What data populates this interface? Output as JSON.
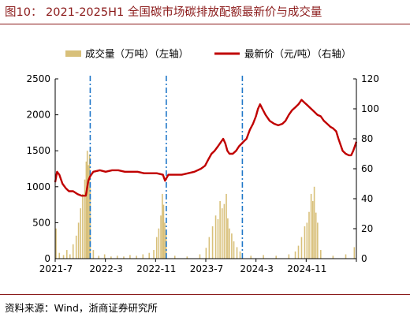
{
  "figure_title": "图10：  2021-2025H1 全国碳市场碳排放配额最新价与成交量",
  "source": "资料来源：Wind，浙商证券研究所",
  "colors": {
    "bar": "#d8c07a",
    "line": "#c00000",
    "vline": "#1f77c8",
    "title": "#8b1a1a"
  },
  "chart_data": {
    "type": "bar+line",
    "title": "",
    "legend_position": "top",
    "grid": false,
    "x_tick_labels": [
      "2021-7",
      "2022-3",
      "2022-11",
      "2023-7",
      "2024-3",
      "2024-11"
    ],
    "x_range": [
      "2021-07-16",
      "2025-06-30"
    ],
    "y_left": {
      "label": "",
      "range": [
        0,
        2500
      ],
      "ticks": [
        0,
        500,
        1000,
        1500,
        2000,
        2500
      ]
    },
    "y_right": {
      "label": "",
      "range": [
        0,
        120
      ],
      "ticks": [
        0,
        20,
        40,
        60,
        80,
        100,
        120
      ]
    },
    "vertical_markers": [
      "2021-12-31",
      "2022-12-31",
      "2023-12-31"
    ],
    "series": [
      {
        "name": "成交量（万吨）（左轴）",
        "type": "bar",
        "axis": "left",
        "points": [
          [
            "2021-07-20",
            420
          ],
          [
            "2021-08-05",
            80
          ],
          [
            "2021-08-25",
            50
          ],
          [
            "2021-09-10",
            120
          ],
          [
            "2021-09-25",
            60
          ],
          [
            "2021-10-10",
            200
          ],
          [
            "2021-10-25",
            320
          ],
          [
            "2021-11-05",
            500
          ],
          [
            "2021-11-15",
            700
          ],
          [
            "2021-11-25",
            900
          ],
          [
            "2021-12-05",
            1100
          ],
          [
            "2021-12-12",
            1350
          ],
          [
            "2021-12-17",
            1500
          ],
          [
            "2021-12-22",
            1300
          ],
          [
            "2021-12-28",
            1450
          ],
          [
            "2021-12-31",
            980
          ],
          [
            "2022-01-15",
            120
          ],
          [
            "2022-02-10",
            40
          ],
          [
            "2022-03-10",
            60
          ],
          [
            "2022-04-10",
            30
          ],
          [
            "2022-05-10",
            40
          ],
          [
            "2022-06-10",
            30
          ],
          [
            "2022-07-10",
            50
          ],
          [
            "2022-08-10",
            40
          ],
          [
            "2022-09-10",
            60
          ],
          [
            "2022-10-10",
            80
          ],
          [
            "2022-11-01",
            120
          ],
          [
            "2022-11-15",
            300
          ],
          [
            "2022-11-25",
            420
          ],
          [
            "2022-12-05",
            600
          ],
          [
            "2022-12-12",
            900
          ],
          [
            "2022-12-18",
            750
          ],
          [
            "2022-12-24",
            500
          ],
          [
            "2022-12-30",
            350
          ],
          [
            "2023-02-10",
            40
          ],
          [
            "2023-04-10",
            30
          ],
          [
            "2023-06-10",
            60
          ],
          [
            "2023-07-10",
            150
          ],
          [
            "2023-07-25",
            300
          ],
          [
            "2023-08-10",
            450
          ],
          [
            "2023-08-25",
            600
          ],
          [
            "2023-09-05",
            550
          ],
          [
            "2023-09-15",
            800
          ],
          [
            "2023-09-25",
            700
          ],
          [
            "2023-10-05",
            760
          ],
          [
            "2023-10-15",
            900
          ],
          [
            "2023-10-22",
            560
          ],
          [
            "2023-10-30",
            420
          ],
          [
            "2023-11-10",
            350
          ],
          [
            "2023-11-20",
            240
          ],
          [
            "2023-12-05",
            160
          ],
          [
            "2023-12-20",
            100
          ],
          [
            "2024-02-10",
            40
          ],
          [
            "2024-04-10",
            50
          ],
          [
            "2024-06-10",
            40
          ],
          [
            "2024-08-10",
            60
          ],
          [
            "2024-09-10",
            100
          ],
          [
            "2024-09-25",
            180
          ],
          [
            "2024-10-10",
            300
          ],
          [
            "2024-10-25",
            450
          ],
          [
            "2024-11-05",
            500
          ],
          [
            "2024-11-15",
            650
          ],
          [
            "2024-11-25",
            900
          ],
          [
            "2024-12-03",
            800
          ],
          [
            "2024-12-10",
            1000
          ],
          [
            "2024-12-18",
            640
          ],
          [
            "2024-12-26",
            500
          ],
          [
            "2025-01-10",
            120
          ],
          [
            "2025-03-10",
            40
          ],
          [
            "2025-05-10",
            60
          ],
          [
            "2025-06-20",
            160
          ]
        ]
      },
      {
        "name": "最新价（元/吨）（右轴）",
        "type": "line",
        "axis": "right",
        "points": [
          [
            "2021-07-16",
            51
          ],
          [
            "2021-07-25",
            58
          ],
          [
            "2021-08-05",
            56
          ],
          [
            "2021-08-20",
            50
          ],
          [
            "2021-09-05",
            47
          ],
          [
            "2021-09-20",
            45
          ],
          [
            "2021-10-10",
            45
          ],
          [
            "2021-11-01",
            43
          ],
          [
            "2021-11-20",
            42
          ],
          [
            "2021-12-10",
            42
          ],
          [
            "2021-12-22",
            52
          ],
          [
            "2021-12-31",
            55
          ],
          [
            "2022-01-15",
            58
          ],
          [
            "2022-02-15",
            59
          ],
          [
            "2022-03-15",
            58
          ],
          [
            "2022-04-15",
            59
          ],
          [
            "2022-05-15",
            59
          ],
          [
            "2022-06-15",
            58
          ],
          [
            "2022-07-15",
            58
          ],
          [
            "2022-08-15",
            58
          ],
          [
            "2022-09-15",
            57
          ],
          [
            "2022-10-15",
            57
          ],
          [
            "2022-11-15",
            57
          ],
          [
            "2022-12-15",
            56
          ],
          [
            "2022-12-25",
            52
          ],
          [
            "2023-01-10",
            56
          ],
          [
            "2023-02-15",
            56
          ],
          [
            "2023-03-15",
            56
          ],
          [
            "2023-04-15",
            57
          ],
          [
            "2023-05-15",
            58
          ],
          [
            "2023-06-15",
            60
          ],
          [
            "2023-07-05",
            62
          ],
          [
            "2023-07-20",
            66
          ],
          [
            "2023-08-05",
            70
          ],
          [
            "2023-08-20",
            72
          ],
          [
            "2023-09-05",
            75
          ],
          [
            "2023-09-20",
            78
          ],
          [
            "2023-09-30",
            80
          ],
          [
            "2023-10-10",
            77
          ],
          [
            "2023-10-20",
            72
          ],
          [
            "2023-10-30",
            70
          ],
          [
            "2023-11-15",
            70
          ],
          [
            "2023-12-01",
            72
          ],
          [
            "2023-12-15",
            75
          ],
          [
            "2024-01-05",
            78
          ],
          [
            "2024-01-20",
            80
          ],
          [
            "2024-02-05",
            86
          ],
          [
            "2024-02-20",
            90
          ],
          [
            "2024-03-05",
            95
          ],
          [
            "2024-03-15",
            100
          ],
          [
            "2024-03-25",
            103
          ],
          [
            "2024-04-05",
            100
          ],
          [
            "2024-04-20",
            96
          ],
          [
            "2024-05-10",
            92
          ],
          [
            "2024-06-01",
            90
          ],
          [
            "2024-06-20",
            89
          ],
          [
            "2024-07-10",
            90
          ],
          [
            "2024-07-25",
            92
          ],
          [
            "2024-08-10",
            96
          ],
          [
            "2024-08-25",
            99
          ],
          [
            "2024-09-10",
            101
          ],
          [
            "2024-09-25",
            103
          ],
          [
            "2024-10-10",
            106
          ],
          [
            "2024-10-25",
            104
          ],
          [
            "2024-11-10",
            102
          ],
          [
            "2024-11-25",
            100
          ],
          [
            "2024-12-10",
            98
          ],
          [
            "2024-12-25",
            96
          ],
          [
            "2025-01-10",
            95
          ],
          [
            "2025-01-25",
            92
          ],
          [
            "2025-02-10",
            90
          ],
          [
            "2025-02-25",
            88
          ],
          [
            "2025-03-10",
            87
          ],
          [
            "2025-03-25",
            85
          ],
          [
            "2025-04-05",
            80
          ],
          [
            "2025-04-15",
            76
          ],
          [
            "2025-04-25",
            72
          ],
          [
            "2025-05-10",
            70
          ],
          [
            "2025-05-25",
            69
          ],
          [
            "2025-06-05",
            69
          ],
          [
            "2025-06-15",
            72
          ],
          [
            "2025-06-25",
            76
          ],
          [
            "2025-06-30",
            78
          ]
        ]
      }
    ]
  }
}
